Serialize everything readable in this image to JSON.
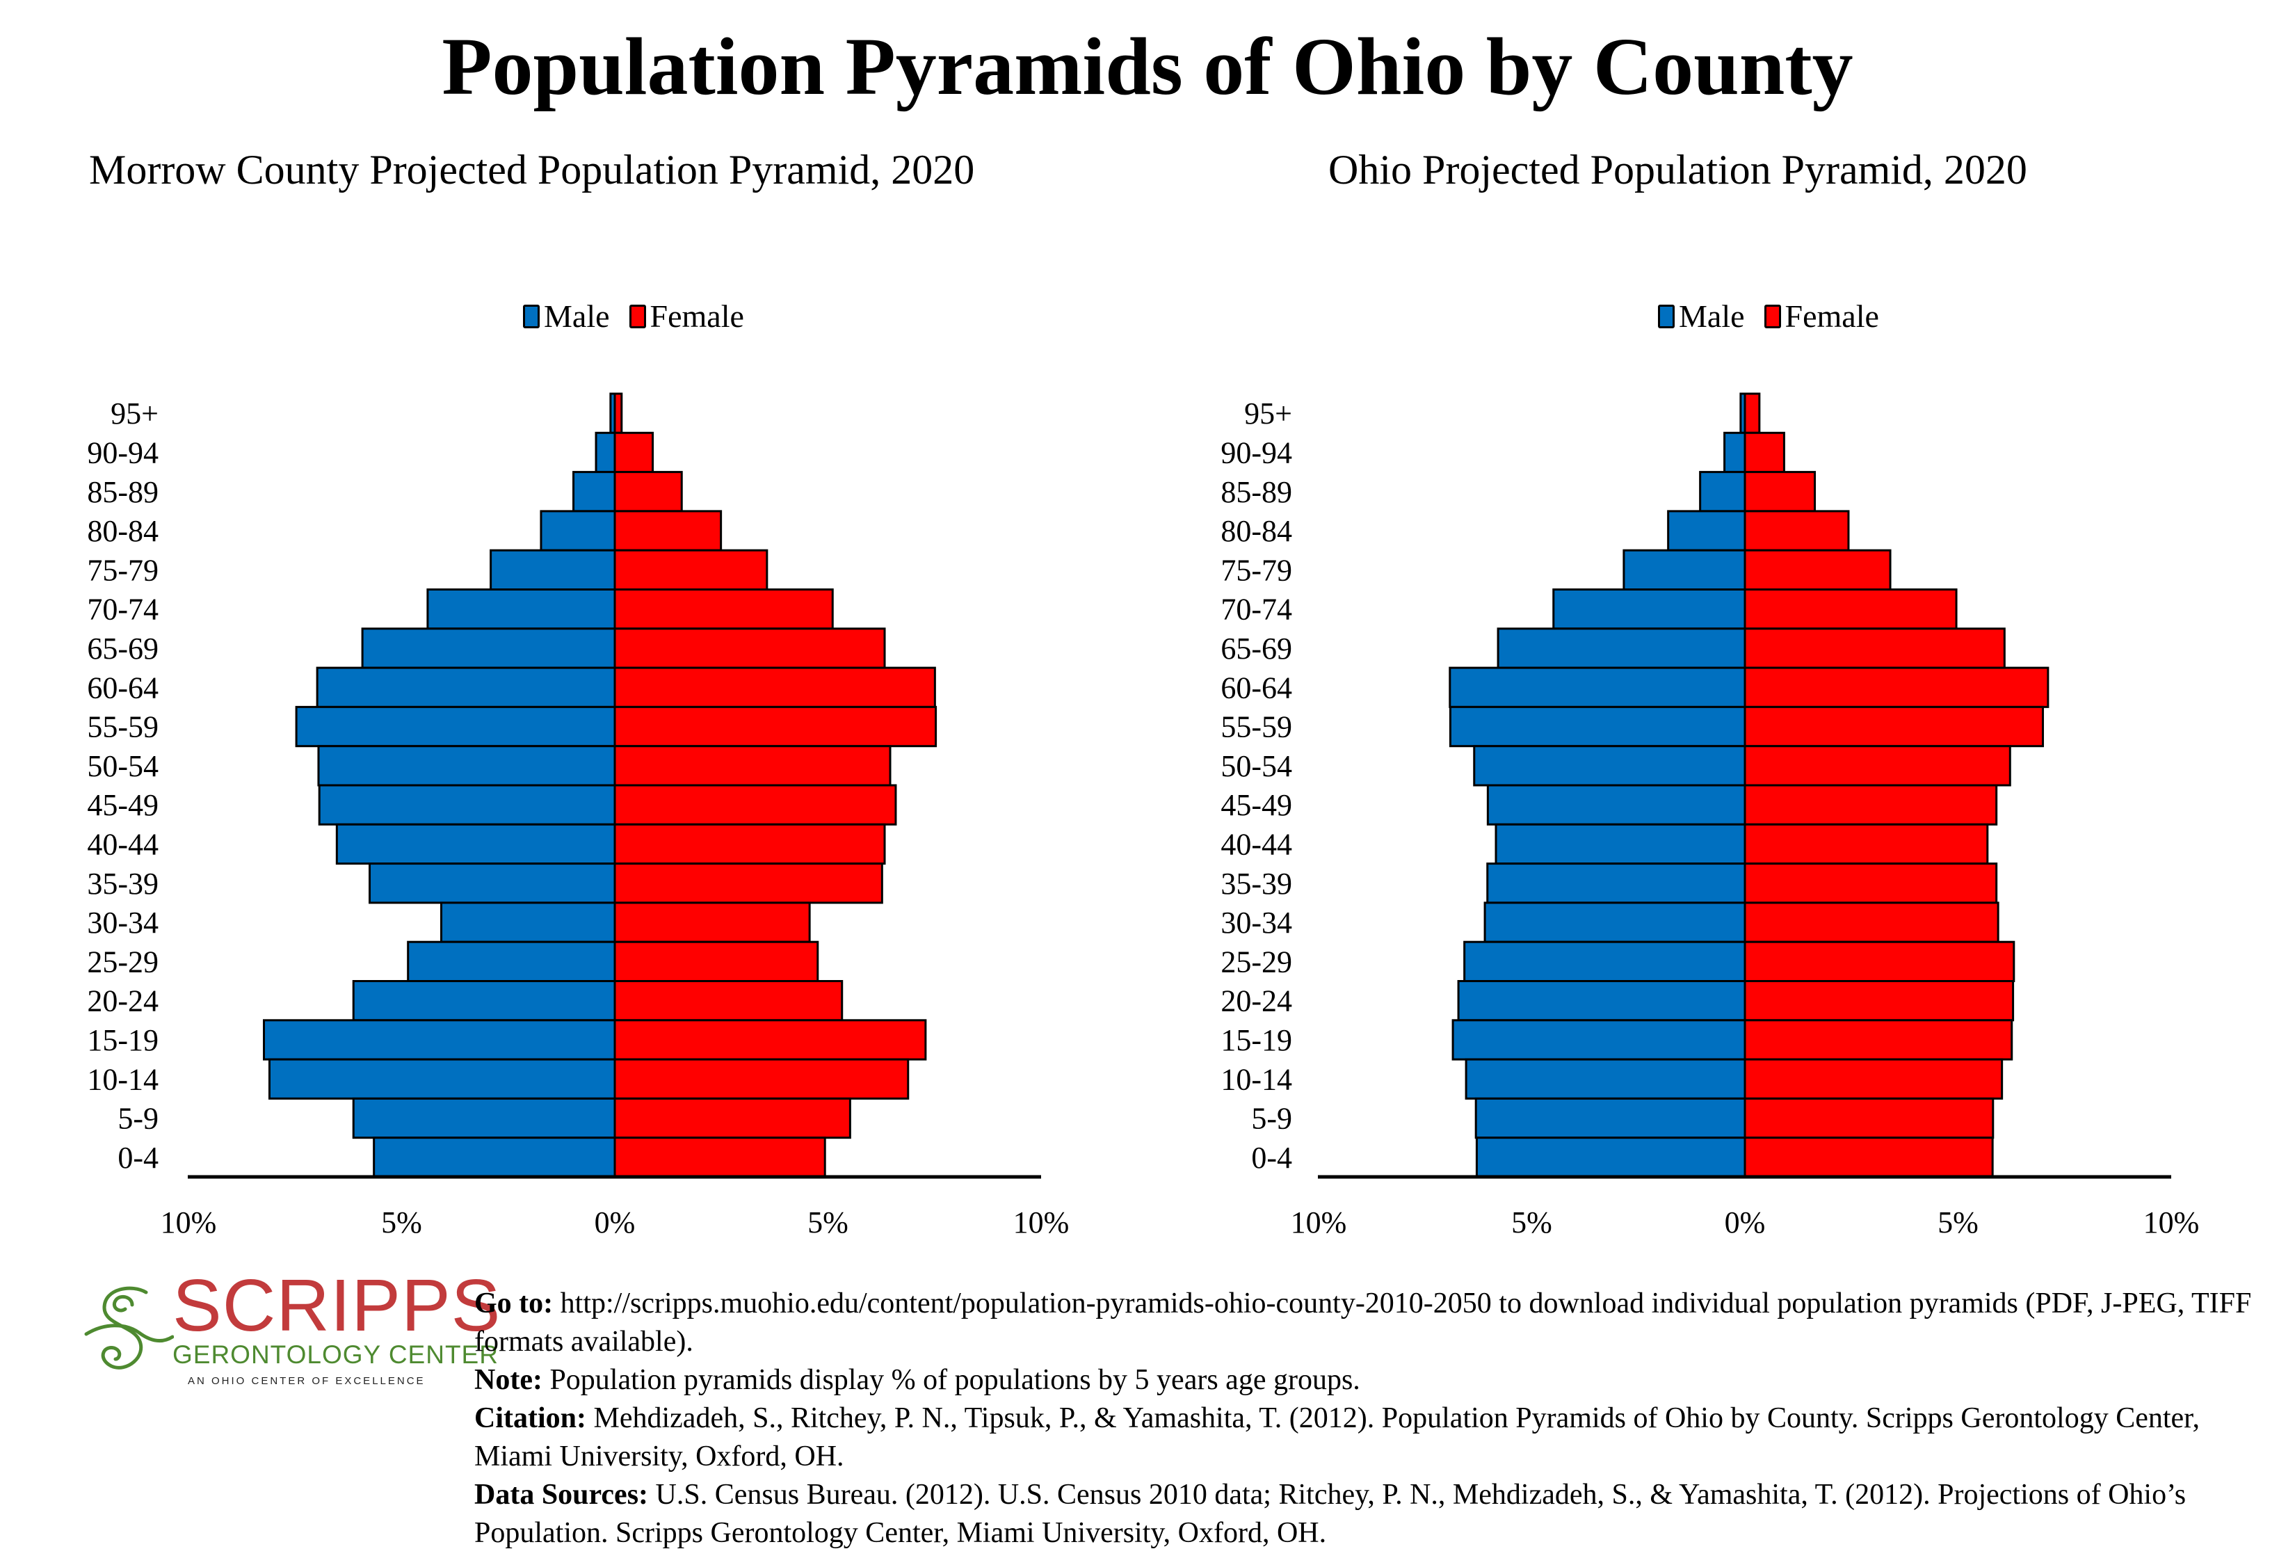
{
  "title": "Population Pyramids of Ohio by County",
  "colors": {
    "male": "#0070c0",
    "female": "#ff0000",
    "logo_red": "#c23b3c",
    "logo_green": "#4e8a30"
  },
  "legend": {
    "male": "Male",
    "female": "Female"
  },
  "chart_data": [
    {
      "type": "bar",
      "orientation": "horizontal-pyramid",
      "title": "Morrow County Projected Population Pyramid, 2020",
      "xlabel": "",
      "ylabel": "",
      "xlim": [
        -10,
        10
      ],
      "x_ticks": [
        "10%",
        "5%",
        "0%",
        "5%",
        "10%"
      ],
      "legend_position": "top-center",
      "grid": false,
      "categories": [
        "95+",
        "90-94",
        "85-89",
        "80-84",
        "75-79",
        "70-74",
        "65-69",
        "60-64",
        "55-59",
        "50-54",
        "45-49",
        "40-44",
        "35-39",
        "30-34",
        "25-29",
        "20-24",
        "15-19",
        "10-14",
        "5-9",
        "0-4"
      ],
      "series": [
        {
          "name": "Male",
          "values": [
            0.1,
            0.44,
            0.97,
            1.73,
            2.91,
            4.39,
            5.92,
            6.98,
            7.47,
            6.95,
            6.93,
            6.52,
            5.75,
            4.07,
            4.85,
            6.13,
            8.23,
            8.1,
            6.13,
            5.65
          ]
        },
        {
          "name": "Female",
          "values": [
            0.16,
            0.89,
            1.57,
            2.49,
            3.57,
            5.11,
            6.33,
            7.51,
            7.53,
            6.46,
            6.59,
            6.33,
            6.27,
            4.57,
            4.76,
            5.33,
            7.29,
            6.88,
            5.52,
            4.93
          ]
        }
      ]
    },
    {
      "type": "bar",
      "orientation": "horizontal-pyramid",
      "title": "Ohio Projected Population Pyramid, 2020",
      "xlabel": "",
      "ylabel": "",
      "xlim": [
        -10,
        10
      ],
      "x_ticks": [
        "10%",
        "5%",
        "0%",
        "5%",
        "10%"
      ],
      "legend_position": "top-center",
      "grid": false,
      "categories": [
        "95+",
        "90-94",
        "85-89",
        "80-84",
        "75-79",
        "70-74",
        "65-69",
        "60-64",
        "55-59",
        "50-54",
        "45-49",
        "40-44",
        "35-39",
        "30-34",
        "25-29",
        "20-24",
        "15-19",
        "10-14",
        "5-9",
        "0-4"
      ],
      "series": [
        {
          "name": "Male",
          "values": [
            0.1,
            0.48,
            1.05,
            1.8,
            2.84,
            4.49,
            5.79,
            6.92,
            6.91,
            6.35,
            6.03,
            5.84,
            6.04,
            6.1,
            6.58,
            6.72,
            6.85,
            6.54,
            6.31,
            6.29
          ]
        },
        {
          "name": "Female",
          "values": [
            0.34,
            0.92,
            1.64,
            2.43,
            3.41,
            4.96,
            6.09,
            7.11,
            6.99,
            6.22,
            5.9,
            5.69,
            5.9,
            5.94,
            6.31,
            6.29,
            6.26,
            6.03,
            5.82,
            5.81
          ]
        }
      ]
    }
  ],
  "logo": {
    "name": "SCRIPPS",
    "subtitle": "GERONTOLOGY CENTER",
    "tagline": "AN OHIO CENTER OF EXCELLENCE",
    "icon": "swirl-icon"
  },
  "footer": {
    "goto_label": "Go to:",
    "goto_text": " http://scripps.muohio.edu/content/population-pyramids-ohio-county-2010-2050 to download individual population pyramids (PDF, J-PEG, TIFF formats available).",
    "note_label": "Note:",
    "note_text": " Population pyramids display % of populations by 5 years age groups.",
    "citation_label": "Citation:",
    "citation_text": " Mehdizadeh, S., Ritchey, P. N., Tipsuk, P., & Yamashita, T. (2012). Population Pyramids of Ohio by County. Scripps Gerontology Center, Miami University, Oxford, OH.",
    "sources_label": "Data Sources:",
    "sources_text": " U.S. Census Bureau. (2012). U.S. Census 2010 data; Ritchey, P. N., Mehdizadeh, S., & Yamashita, T. (2012). Projections of Ohio’s Population. Scripps Gerontology Center, Miami University, Oxford, OH."
  }
}
